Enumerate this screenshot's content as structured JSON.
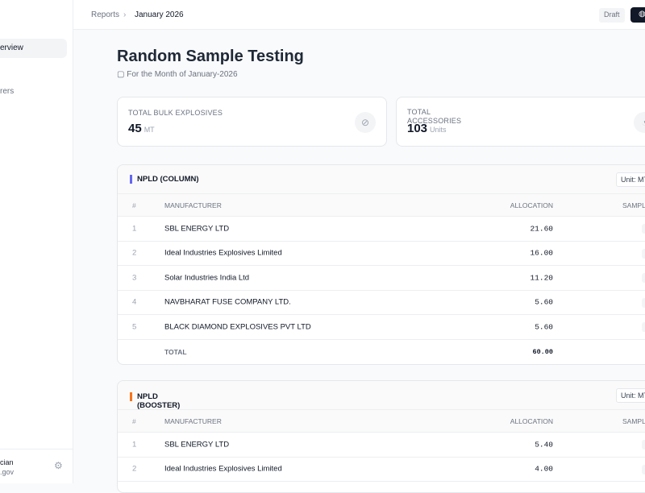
{
  "sidebar": {
    "active_item": "erview",
    "item2": "rers",
    "user_name": "cian",
    "user_email": ".gov"
  },
  "topbar": {
    "breadcrumb": [
      "Reports",
      "January 2026"
    ],
    "status": "Draft",
    "action_icon": "globe-icon"
  },
  "page": {
    "title": "Random Sample Testing",
    "subtitle": "For the Month of January-2026"
  },
  "cards": [
    {
      "label": "TOTAL BULK EXPLOSIVES",
      "value": "45",
      "unit": "MT"
    },
    {
      "label": "TOTAL ACCESSORIES",
      "value": "103",
      "unit": "Units"
    }
  ],
  "columns": {
    "num": "#",
    "manufacturer": "MANUFACTURER",
    "allocation": "ALLOCATION",
    "sample": "SAMPL"
  },
  "tables": [
    {
      "title": "NPLD (COLUMN)",
      "accent": "#6366f1",
      "unit": "Unit: MT",
      "rows": [
        [
          "1",
          "SBL ENERGY LTD",
          "21.60"
        ],
        [
          "2",
          "Ideal Industries Explosives Limited",
          "16.00"
        ],
        [
          "3",
          "Solar Industries India Ltd",
          "11.20"
        ],
        [
          "4",
          "NAVBHARAT FUSE COMPANY LTD.",
          "5.60"
        ],
        [
          "5",
          "BLACK DIAMOND EXPLOSIVES PVT LTD",
          "5.60"
        ]
      ],
      "total_label": "TOTAL",
      "total": "60.00"
    },
    {
      "title": "NPLD (BOOSTER)",
      "accent": "#f97316",
      "unit": "Unit: MT",
      "rows": [
        [
          "1",
          "SBL ENERGY LTD",
          "5.40"
        ],
        [
          "2",
          "Ideal Industries Explosives Limited",
          "4.00"
        ]
      ]
    }
  ]
}
